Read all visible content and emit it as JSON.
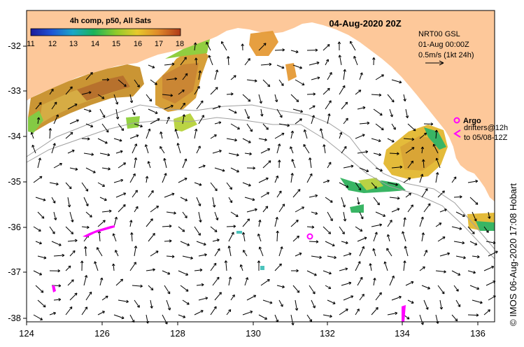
{
  "title": "04-Aug-2020 20Z",
  "colorbar": {
    "title": "4h comp, p50, All Sats",
    "ticks": [
      "11",
      "12",
      "13",
      "14",
      "15",
      "16",
      "17",
      "18"
    ]
  },
  "product": {
    "name": "NRT00 GSL",
    "date": "01-Aug 00:00Z",
    "scale": "0.5m/s (1kt 24h)"
  },
  "legend": {
    "argo": "Argo",
    "drifters_line1": "drifters@12h",
    "drifters_line2": "to 05/08-12Z"
  },
  "credit": "© IMOS 06-Aug-2020 17:08 Hobart",
  "axes": {
    "lon_ticks": [
      "124",
      "126",
      "128",
      "130",
      "132",
      "134",
      "136"
    ],
    "lat_ticks": [
      "-32",
      "-33",
      "-34",
      "-35",
      "-36",
      "-37",
      "-38"
    ]
  },
  "colors": {
    "land": "#fdc89a",
    "argo": "#ff00ff",
    "frame": "#000000"
  }
}
